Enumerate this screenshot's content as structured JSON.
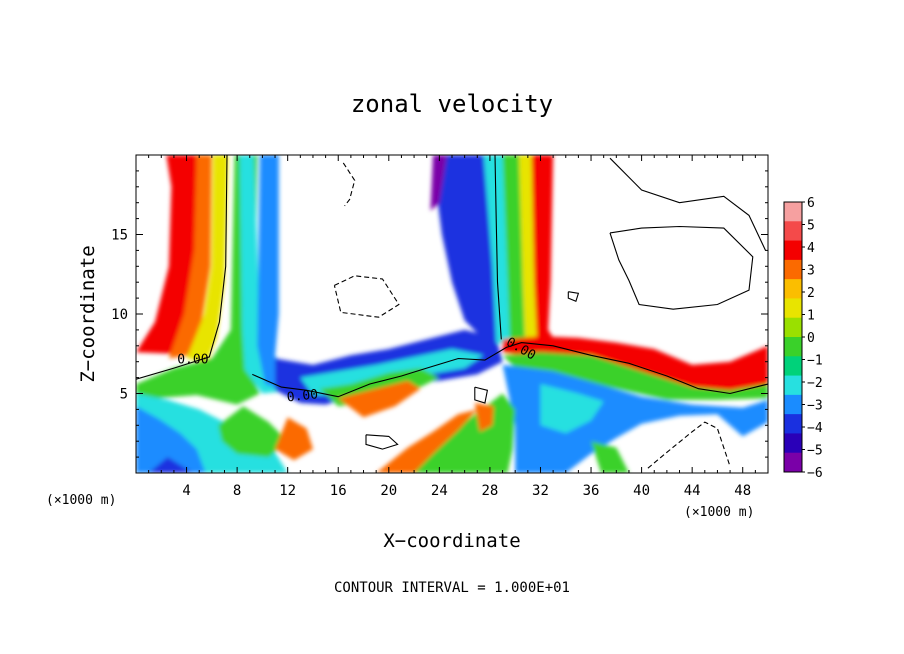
{
  "chart_data": {
    "type": "heatmap",
    "title": "zonal velocity",
    "xlabel": "X−coordinate",
    "ylabel": "Z−coordinate",
    "x_unit": "(×1000 m)",
    "y_unit": "(×1000 m)",
    "footer": "CONTOUR INTERVAL = 1.000E+01",
    "xlim": [
      0,
      50
    ],
    "ylim": [
      0,
      20
    ],
    "x_ticks": [
      4,
      8,
      12,
      16,
      20,
      24,
      28,
      32,
      36,
      40,
      44,
      48
    ],
    "y_ticks": [
      5,
      10,
      15
    ],
    "contour_label": "0.00",
    "colorbar": {
      "min": -6,
      "max": 6,
      "ticks": [
        6,
        5,
        4,
        3,
        2,
        1,
        0,
        -1,
        -2,
        -3,
        -4,
        -5,
        -6
      ],
      "tick_labels": [
        "6",
        "5",
        "4",
        "3",
        "2",
        "1",
        "0",
        "−1",
        "−2",
        "−3",
        "−4",
        "−5",
        "−6"
      ],
      "colors": [
        "#f6a0a0",
        "#f44a4a",
        "#f40000",
        "#fb6a00",
        "#fbbe00",
        "#e8e400",
        "#9ae000",
        "#3ad12a",
        "#00d27a",
        "#27e0e0",
        "#1a8cff",
        "#1a30e0",
        "#2a00b8",
        "#7a00a8"
      ]
    },
    "grid": false
  }
}
